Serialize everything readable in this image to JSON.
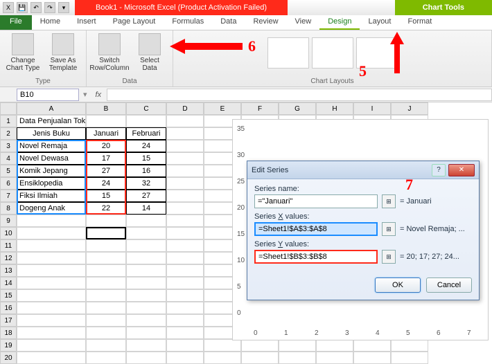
{
  "titlebar": {
    "red": "Book1 - Microsoft Excel (Product Activation Failed)",
    "green": "Chart Tools"
  },
  "tabs": [
    "File",
    "Home",
    "Insert",
    "Page Layout",
    "Formulas",
    "Data",
    "Review",
    "View",
    "Design",
    "Layout",
    "Format"
  ],
  "ribbon": {
    "type_group": "Type",
    "change_chart": "Change Chart Type",
    "save_template": "Save As Template",
    "data_group": "Data",
    "switch": "Switch Row/Column",
    "select": "Select Data",
    "layouts_group": "Chart Layouts"
  },
  "namebox": "B10",
  "annotations": {
    "a5": "5",
    "a6": "6",
    "a7": "7"
  },
  "sheet": {
    "title": "Data Penjualan Toko Buku Makmur",
    "headers": [
      "Jenis Buku",
      "Januari",
      "Februari"
    ],
    "rows": [
      [
        "Novel Remaja",
        "20",
        "24"
      ],
      [
        "Novel Dewasa",
        "17",
        "15"
      ],
      [
        "Komik Jepang",
        "27",
        "16"
      ],
      [
        "Ensiklopedia",
        "24",
        "32"
      ],
      [
        "Fiksi Ilmiah",
        "15",
        "27"
      ],
      [
        "Dogeng Anak",
        "22",
        "14"
      ]
    ],
    "col_widths": {
      "A": 100,
      "B": 58,
      "C": 58,
      "def": 54
    },
    "cols": [
      "A",
      "B",
      "C",
      "D",
      "E",
      "F",
      "G",
      "H",
      "I",
      "J"
    ],
    "blank_rows": 12
  },
  "chart": {
    "yticks": [
      "35",
      "30",
      "25",
      "20",
      "15",
      "10",
      "5",
      "0"
    ],
    "xticks": [
      "0",
      "1",
      "2",
      "3",
      "4",
      "5",
      "6",
      "7"
    ]
  },
  "dialog": {
    "title": "Edit Series",
    "name_label": "Series name:",
    "name_val": "=\"Januari\"",
    "name_eq": "= Januari",
    "x_label_pre": "Series ",
    "x_label_u": "X",
    "x_label_post": " values:",
    "x_val": "=Sheet1!$A$3:$A$8",
    "x_eq": "= Novel Remaja; ...",
    "y_label_pre": "Series ",
    "y_label_u": "Y",
    "y_label_post": " values:",
    "y_val": "=Sheet1!$B$3:$B$8",
    "y_eq": "= 20; 17; 27; 24...",
    "ok": "OK",
    "cancel": "Cancel"
  }
}
